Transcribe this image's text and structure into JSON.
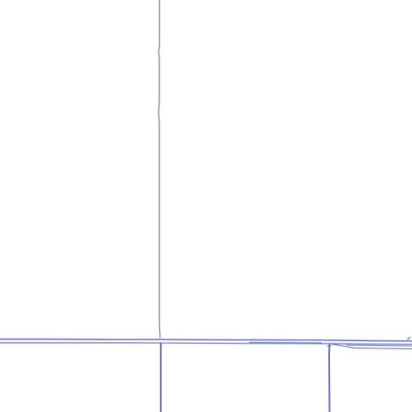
{
  "colors": {
    "background": "#ffffff",
    "primary_stroke": "#5a5fbf",
    "secondary_stroke": "#4f86c9",
    "thin_stroke": "#7a7fd0"
  }
}
